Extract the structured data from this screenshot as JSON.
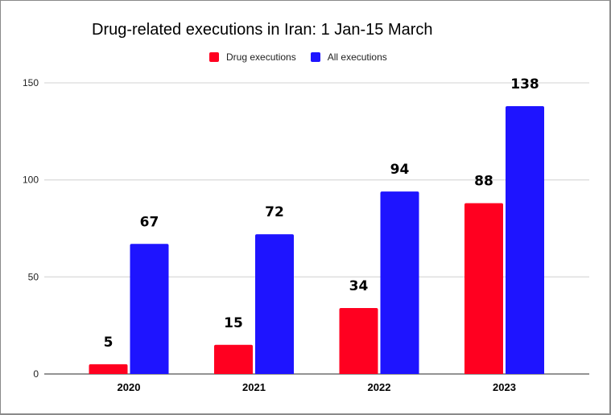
{
  "chart_data": {
    "type": "bar",
    "title": "Drug-related executions in Iran: 1 Jan-15 March",
    "xlabel": "",
    "ylabel": "",
    "categories": [
      "2020",
      "2021",
      "2022",
      "2023"
    ],
    "series": [
      {
        "name": "Drug executions",
        "color": "#ff0020",
        "values": [
          5,
          15,
          34,
          88
        ]
      },
      {
        "name": "All executions",
        "color": "#1e14ff",
        "values": [
          67,
          72,
          94,
          138
        ]
      }
    ],
    "ylim": [
      0,
      150
    ],
    "yticks": [
      0,
      50,
      100,
      150
    ],
    "grid": true,
    "legend_position": "top-center",
    "data_labels": true
  }
}
